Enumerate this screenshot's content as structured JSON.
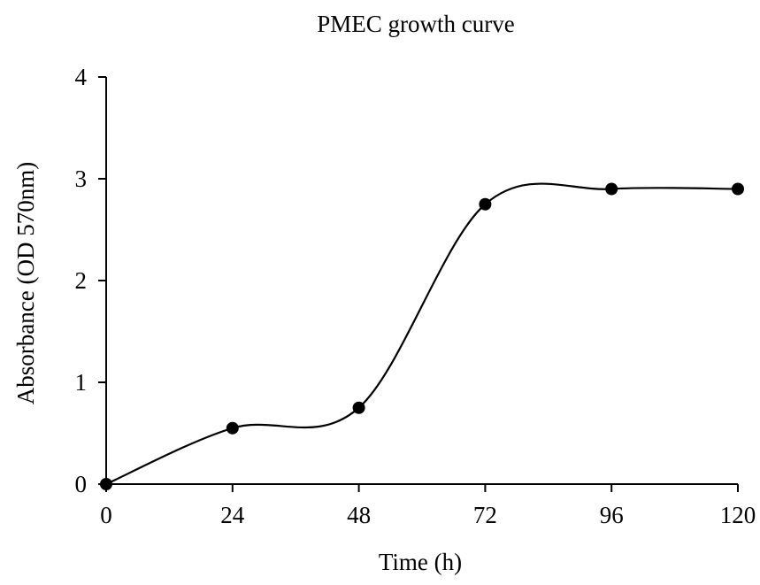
{
  "chart_data": {
    "type": "line",
    "title": "PMEC growth curve",
    "xlabel": "Time (h)",
    "ylabel": "Absorbance (OD 570nm)",
    "x_ticks": [
      "0",
      "24",
      "48",
      "72",
      "96",
      "120"
    ],
    "y_ticks": [
      "0",
      "1",
      "2",
      "3",
      "4"
    ],
    "xlim": [
      0,
      120
    ],
    "ylim": [
      0,
      4
    ],
    "grid": false,
    "legend": "none",
    "line_style": "smoothed",
    "marker": "filled-circle",
    "colors": {
      "line": "#000000",
      "marker": "#000000"
    },
    "series": [
      {
        "x": [
          0,
          24,
          48,
          72,
          96,
          120
        ],
        "y": [
          0.0,
          0.55,
          0.75,
          2.75,
          2.9,
          2.9
        ]
      }
    ]
  }
}
